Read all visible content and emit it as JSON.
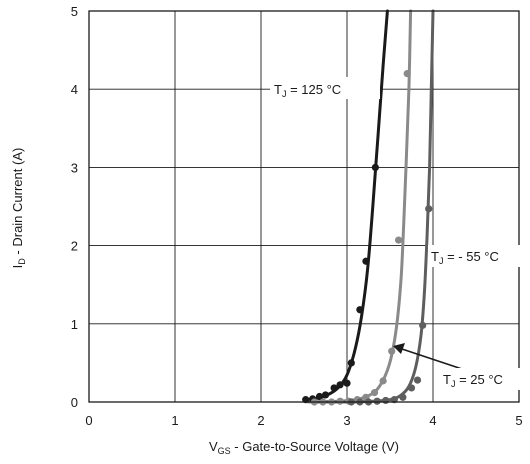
{
  "chart_data": {
    "type": "line",
    "title": "",
    "xlabel": {
      "main": "V",
      "sub": "GS",
      "rest": " - Gate-to-Source Voltage (V)"
    },
    "ylabel": {
      "main": "I",
      "sub": "D",
      "rest": " - Drain Current  (A)"
    },
    "xlim": [
      0,
      5
    ],
    "ylim": [
      0,
      5
    ],
    "xticks": [
      "0",
      "1",
      "2",
      "3",
      "4",
      "5"
    ],
    "yticks": [
      "0",
      "1",
      "2",
      "3",
      "4",
      "5"
    ],
    "grid": true,
    "series": [
      {
        "name": {
          "main": "T",
          "sub": "J",
          "rest": " = 125 °C"
        },
        "color": "#1a1a1a",
        "curve": [
          [
            2.5,
            0.02
          ],
          [
            2.7,
            0.06
          ],
          [
            2.85,
            0.14
          ],
          [
            2.95,
            0.25
          ],
          [
            3.02,
            0.4
          ],
          [
            3.1,
            0.7
          ],
          [
            3.17,
            1.1
          ],
          [
            3.24,
            1.7
          ],
          [
            3.3,
            2.5
          ],
          [
            3.36,
            3.4
          ],
          [
            3.42,
            4.3
          ],
          [
            3.47,
            5.0
          ]
        ],
        "markers": [
          [
            2.52,
            0.03
          ],
          [
            2.6,
            0.04
          ],
          [
            2.68,
            0.07
          ],
          [
            2.75,
            0.09
          ],
          [
            2.85,
            0.18
          ],
          [
            2.92,
            0.22
          ],
          [
            3.0,
            0.24
          ],
          [
            3.05,
            0.5
          ],
          [
            3.15,
            1.18
          ],
          [
            3.22,
            1.8
          ],
          [
            3.33,
            3.0
          ]
        ]
      },
      {
        "name": {
          "main": "T",
          "sub": "J",
          "rest": " = - 55 °C"
        },
        "color": "#8a8a8a",
        "curve": [
          [
            2.55,
            0.0
          ],
          [
            2.9,
            0.01
          ],
          [
            3.1,
            0.03
          ],
          [
            3.25,
            0.08
          ],
          [
            3.35,
            0.16
          ],
          [
            3.45,
            0.35
          ],
          [
            3.52,
            0.6
          ],
          [
            3.58,
            1.0
          ],
          [
            3.63,
            1.6
          ],
          [
            3.66,
            2.3
          ],
          [
            3.69,
            3.1
          ],
          [
            3.72,
            4.0
          ],
          [
            3.74,
            5.0
          ]
        ],
        "markers": [
          [
            2.62,
            0.0
          ],
          [
            2.72,
            0.0
          ],
          [
            2.82,
            0.0
          ],
          [
            2.92,
            0.01
          ],
          [
            3.02,
            0.01
          ],
          [
            3.12,
            0.03
          ],
          [
            3.22,
            0.06
          ],
          [
            3.32,
            0.12
          ],
          [
            3.42,
            0.27
          ],
          [
            3.52,
            0.65
          ],
          [
            3.6,
            2.07
          ],
          [
            3.7,
            4.2
          ]
        ]
      },
      {
        "name": {
          "main": "T",
          "sub": "J",
          "rest": " = 25 °C"
        },
        "color": "#5e5e5e",
        "curve": [
          [
            2.6,
            0.0
          ],
          [
            3.0,
            0.0
          ],
          [
            3.3,
            0.01
          ],
          [
            3.5,
            0.03
          ],
          [
            3.62,
            0.08
          ],
          [
            3.72,
            0.2
          ],
          [
            3.8,
            0.45
          ],
          [
            3.86,
            0.85
          ],
          [
            3.9,
            1.4
          ],
          [
            3.93,
            2.1
          ],
          [
            3.96,
            3.0
          ],
          [
            3.98,
            4.0
          ],
          [
            4.0,
            5.0
          ]
        ],
        "markers": [
          [
            3.05,
            0.0
          ],
          [
            3.15,
            0.0
          ],
          [
            3.25,
            0.0
          ],
          [
            3.35,
            0.01
          ],
          [
            3.45,
            0.02
          ],
          [
            3.55,
            0.03
          ],
          [
            3.65,
            0.06
          ],
          [
            3.75,
            0.18
          ],
          [
            3.82,
            0.28
          ],
          [
            3.88,
            0.98
          ],
          [
            3.95,
            2.47
          ]
        ]
      }
    ],
    "annotations": {
      "t125": {
        "main": "T",
        "sub": "J",
        "rest": " = 125 °C"
      },
      "t55": {
        "main": "T",
        "sub": "J",
        "rest": " = - 55 °C"
      },
      "t25": {
        "main": "T",
        "sub": "J",
        "rest": " = 25 °C"
      }
    }
  }
}
